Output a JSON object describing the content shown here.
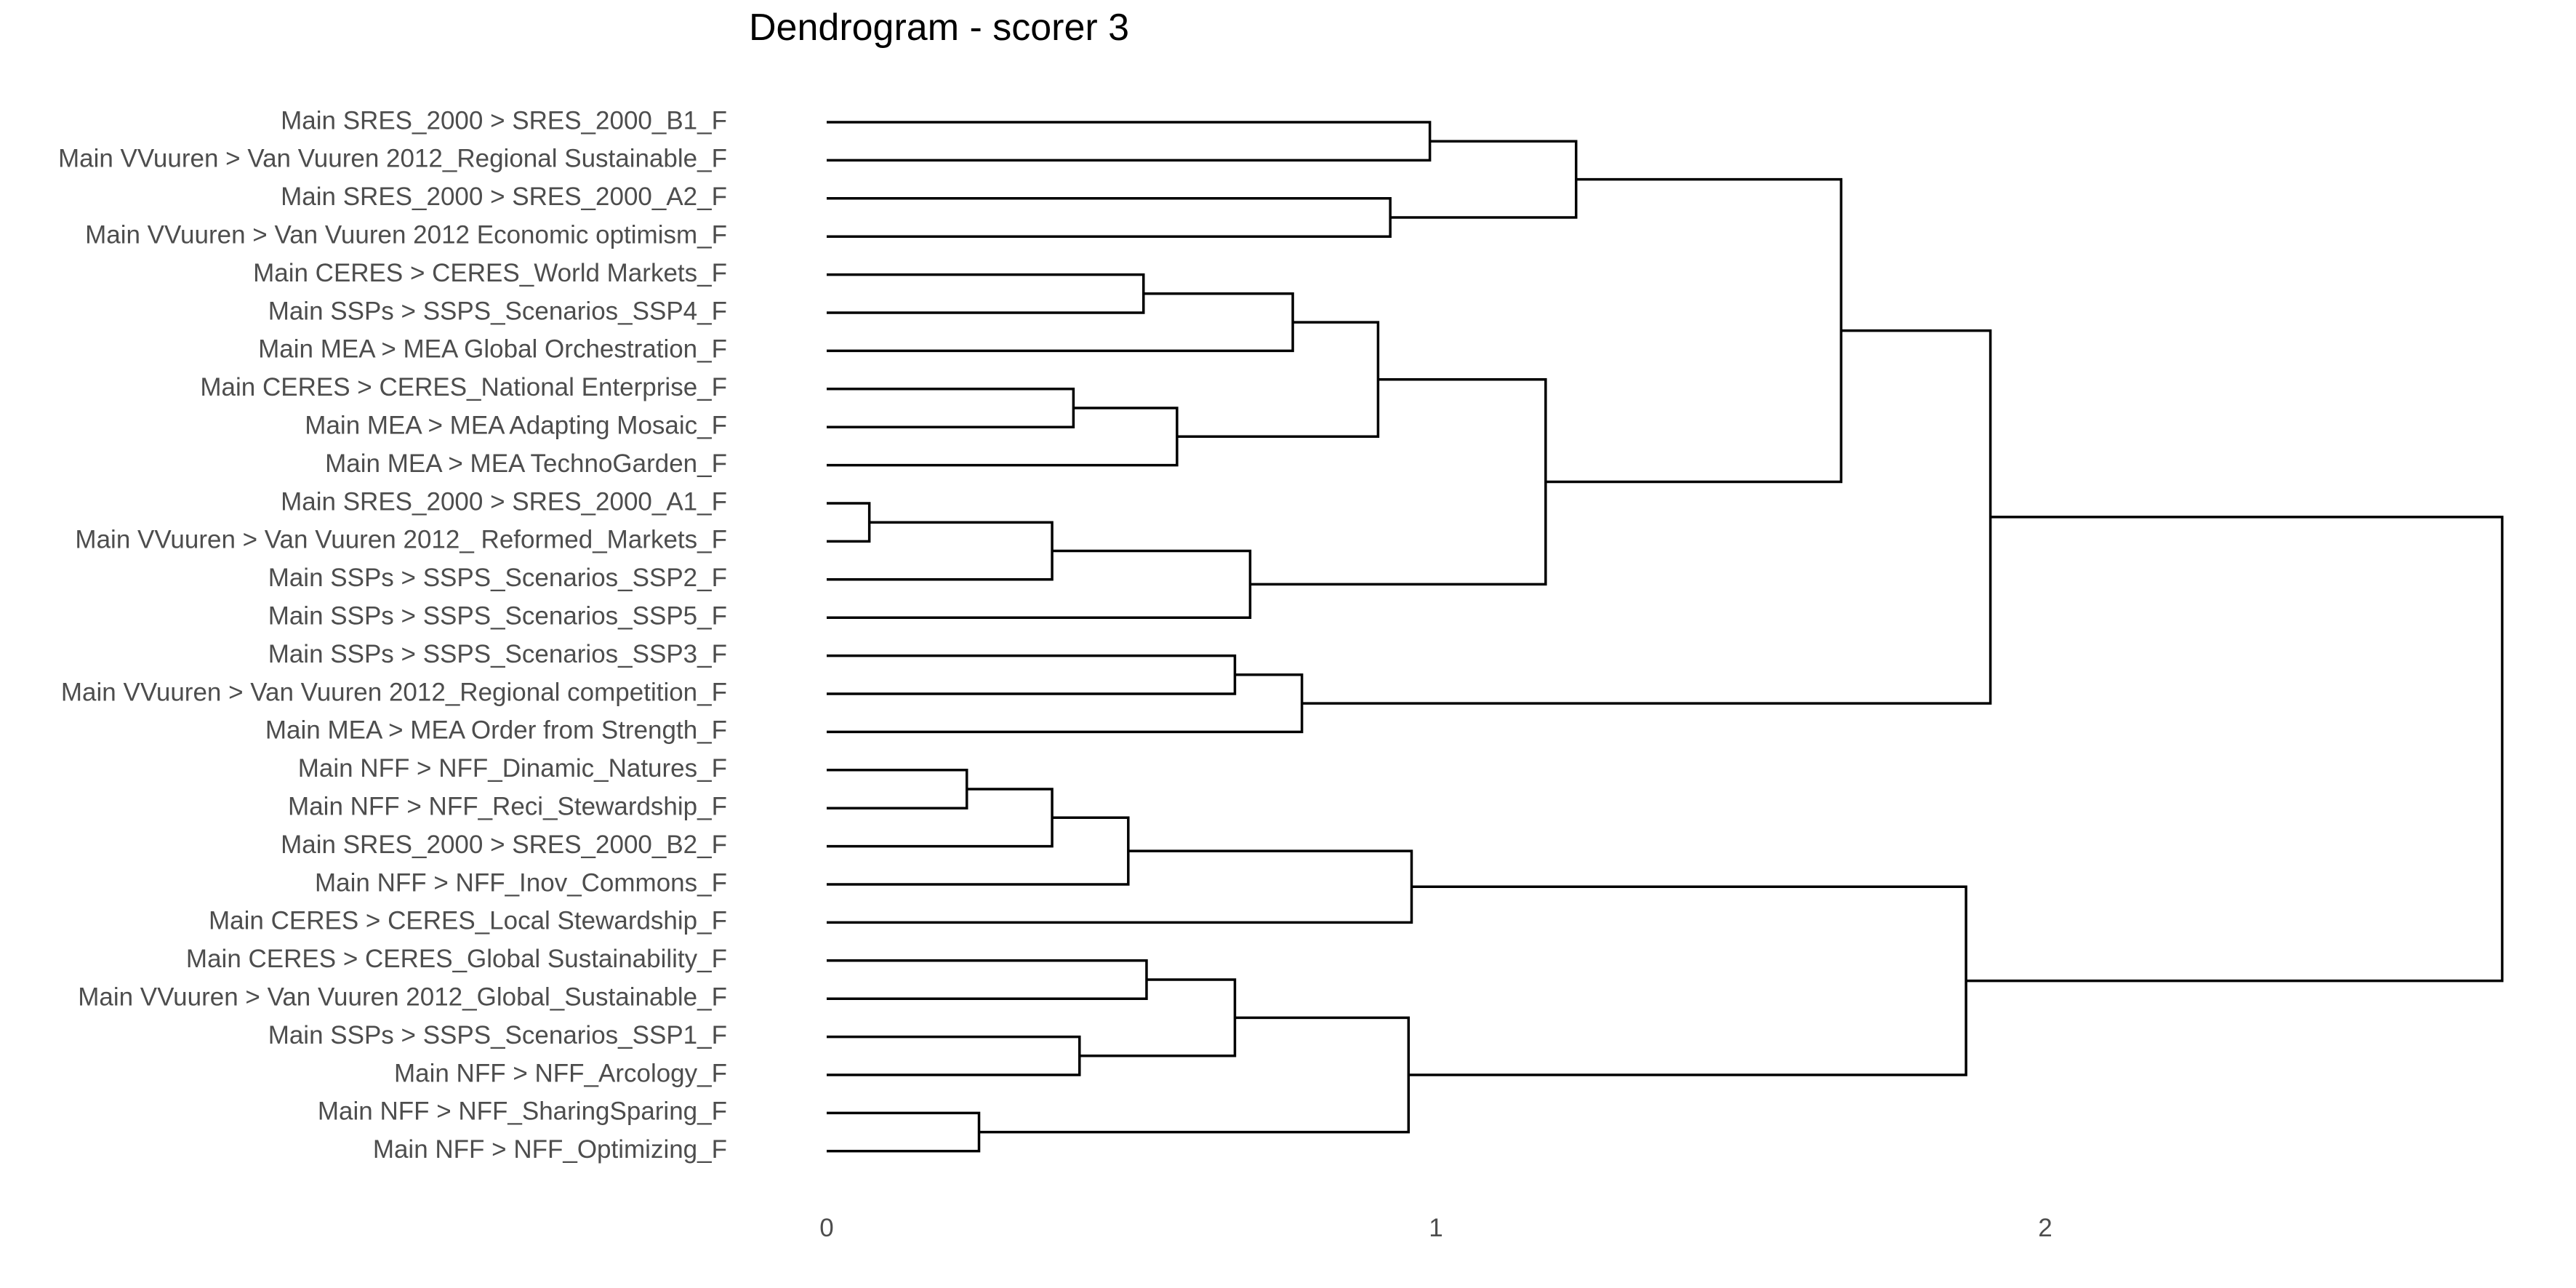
{
  "chart_data": {
    "type": "dendrogram",
    "title": "Dendrogram - scorer 3",
    "xlabel": "",
    "ylabel": "",
    "orientation": "horizontal",
    "x_ticks": [
      0,
      1,
      2
    ],
    "xlim": [
      0,
      2.78
    ],
    "grid": false,
    "leaves": [
      "Main SRES_2000 > SRES_2000_B1_F",
      "Main VVuuren > Van Vuuren 2012_Regional Sustainable_F",
      "Main SRES_2000 > SRES_2000_A2_F",
      "Main VVuuren > Van Vuuren 2012 Economic optimism_F",
      "Main CERES > CERES_World Markets_F",
      "Main SSPs > SSPS_Scenarios_SSP4_F",
      "Main MEA  > MEA Global Orchestration_F",
      "Main CERES > CERES_National Enterprise_F",
      "Main MEA  > MEA Adapting Mosaic_F",
      "Main MEA  > MEA TechnoGarden_F",
      "Main SRES_2000 > SRES_2000_A1_F",
      "Main VVuuren > Van Vuuren 2012_ Reformed_Markets_F",
      "Main SSPs > SSPS_Scenarios_SSP2_F",
      "Main SSPs > SSPS_Scenarios_SSP5_F",
      "Main SSPs > SSPS_Scenarios_SSP3_F",
      "Main VVuuren > Van Vuuren 2012_Regional competition_F",
      "Main MEA  > MEA Order from Strength_F",
      "Main NFF > NFF_Dinamic_Natures_F",
      "Main NFF > NFF_Reci_Stewardship_F",
      "Main SRES_2000 > SRES_2000_B2_F",
      "Main NFF > NFF_Inov_Commons_F",
      "Main CERES > CERES_Local Stewardship_F",
      "Main CERES > CERES_Global Sustainability_F",
      "Main VVuuren > Van Vuuren 2012_Global_Sustainable_F",
      "Main SSPs > SSPS_Scenarios_SSP1_F",
      "Main NFF > NFF_Arcology_F",
      "Main NFF > NFF_SharingSparing_F",
      "Main NFF > NFF_Optimizing_F"
    ],
    "merges": [
      {
        "id": "m1",
        "children": [
          "L0",
          "L1"
        ],
        "height": 0.99
      },
      {
        "id": "m2",
        "children": [
          "L2",
          "L3"
        ],
        "height": 0.925
      },
      {
        "id": "m3",
        "children": [
          "m1",
          "m2"
        ],
        "height": 1.23
      },
      {
        "id": "m4",
        "children": [
          "L4",
          "L5"
        ],
        "height": 0.52
      },
      {
        "id": "m5",
        "children": [
          "m4",
          "L6"
        ],
        "height": 0.765
      },
      {
        "id": "m6",
        "children": [
          "L7",
          "L8"
        ],
        "height": 0.405
      },
      {
        "id": "m7",
        "children": [
          "m6",
          "L9"
        ],
        "height": 0.575
      },
      {
        "id": "m8",
        "children": [
          "m5",
          "m7"
        ],
        "height": 0.905
      },
      {
        "id": "m9",
        "children": [
          "L10",
          "L11"
        ],
        "height": 0.07
      },
      {
        "id": "m10",
        "children": [
          "m9",
          "L12"
        ],
        "height": 0.37
      },
      {
        "id": "m11",
        "children": [
          "m10",
          "L13"
        ],
        "height": 0.695
      },
      {
        "id": "m12",
        "children": [
          "m8",
          "m11"
        ],
        "height": 1.18
      },
      {
        "id": "m13",
        "children": [
          "m3",
          "m12"
        ],
        "height": 1.665
      },
      {
        "id": "m14",
        "children": [
          "L14",
          "L15"
        ],
        "height": 0.67
      },
      {
        "id": "m15",
        "children": [
          "m14",
          "L16"
        ],
        "height": 0.78
      },
      {
        "id": "m16",
        "children": [
          "m13",
          "m15"
        ],
        "height": 1.91
      },
      {
        "id": "m17",
        "children": [
          "L17",
          "L18"
        ],
        "height": 0.23
      },
      {
        "id": "m18",
        "children": [
          "m17",
          "L19"
        ],
        "height": 0.37
      },
      {
        "id": "m19",
        "children": [
          "m18",
          "L20"
        ],
        "height": 0.495
      },
      {
        "id": "m20",
        "children": [
          "m19",
          "L21"
        ],
        "height": 0.96
      },
      {
        "id": "m21",
        "children": [
          "L22",
          "L23"
        ],
        "height": 0.525
      },
      {
        "id": "m22",
        "children": [
          "L24",
          "L25"
        ],
        "height": 0.415
      },
      {
        "id": "m23",
        "children": [
          "m21",
          "m22"
        ],
        "height": 0.67
      },
      {
        "id": "m24",
        "children": [
          "L26",
          "L27"
        ],
        "height": 0.25
      },
      {
        "id": "m25",
        "children": [
          "m23",
          "m24"
        ],
        "height": 0.955
      },
      {
        "id": "m26",
        "children": [
          "m20",
          "m25"
        ],
        "height": 1.87
      },
      {
        "id": "m27",
        "children": [
          "m16",
          "m26"
        ],
        "height": 2.75
      }
    ]
  }
}
